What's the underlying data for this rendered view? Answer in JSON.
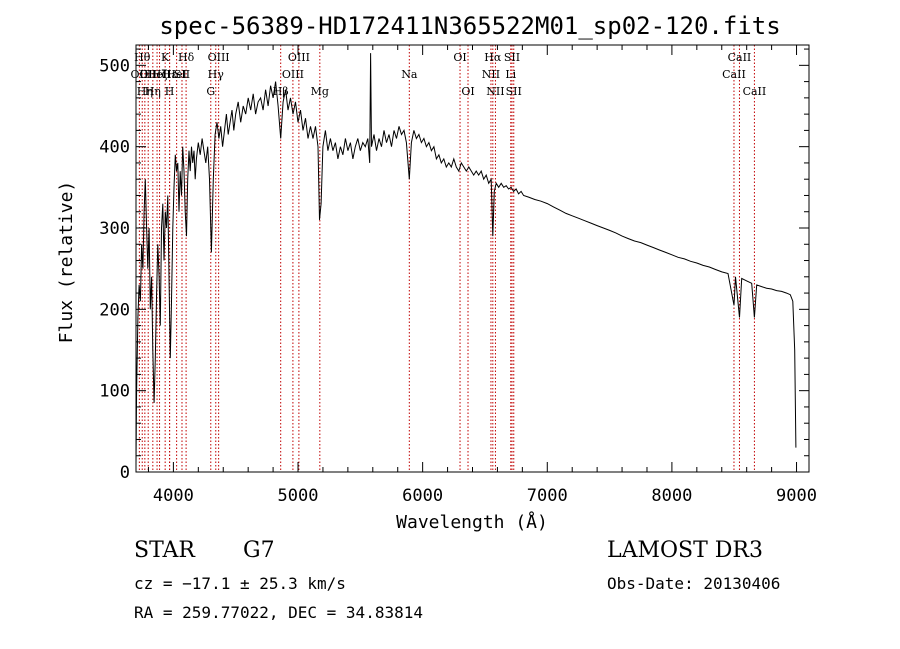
{
  "chart_data": {
    "type": "line",
    "title": "spec-56389-HD172411N365522M01_sp02-120.fits",
    "xlabel": "Wavelength (Å)",
    "ylabel": "Flux (relative)",
    "xlim": [
      3700,
      9100
    ],
    "ylim": [
      0,
      525
    ],
    "xticks": [
      4000,
      5000,
      6000,
      7000,
      8000,
      9000
    ],
    "yticks": [
      0,
      100,
      200,
      300,
      400,
      500
    ],
    "series": [
      {
        "name": "spectrum",
        "points": [
          [
            3700,
            10
          ],
          [
            3705,
            100
          ],
          [
            3715,
            190
          ],
          [
            3725,
            230
          ],
          [
            3735,
            210
          ],
          [
            3745,
            280
          ],
          [
            3755,
            250
          ],
          [
            3765,
            320
          ],
          [
            3775,
            360
          ],
          [
            3785,
            300
          ],
          [
            3795,
            250
          ],
          [
            3805,
            300
          ],
          [
            3815,
            200
          ],
          [
            3825,
            240
          ],
          [
            3835,
            150
          ],
          [
            3845,
            85
          ],
          [
            3855,
            140
          ],
          [
            3865,
            220
          ],
          [
            3875,
            280
          ],
          [
            3885,
            240
          ],
          [
            3895,
            180
          ],
          [
            3905,
            300
          ],
          [
            3915,
            330
          ],
          [
            3925,
            260
          ],
          [
            3935,
            320
          ],
          [
            3945,
            300
          ],
          [
            3955,
            340
          ],
          [
            3965,
            240
          ],
          [
            3975,
            140
          ],
          [
            3985,
            210
          ],
          [
            3995,
            300
          ],
          [
            4005,
            350
          ],
          [
            4015,
            390
          ],
          [
            4025,
            370
          ],
          [
            4035,
            380
          ],
          [
            4045,
            320
          ],
          [
            4055,
            370
          ],
          [
            4065,
            340
          ],
          [
            4075,
            400
          ],
          [
            4085,
            370
          ],
          [
            4095,
            320
          ],
          [
            4105,
            290
          ],
          [
            4115,
            360
          ],
          [
            4125,
            395
          ],
          [
            4135,
            370
          ],
          [
            4145,
            400
          ],
          [
            4155,
            380
          ],
          [
            4165,
            395
          ],
          [
            4175,
            360
          ],
          [
            4185,
            385
          ],
          [
            4200,
            405
          ],
          [
            4215,
            390
          ],
          [
            4230,
            410
          ],
          [
            4245,
            395
          ],
          [
            4260,
            380
          ],
          [
            4275,
            400
          ],
          [
            4290,
            360
          ],
          [
            4305,
            270
          ],
          [
            4320,
            360
          ],
          [
            4335,
            415
          ],
          [
            4350,
            430
          ],
          [
            4365,
            410
          ],
          [
            4380,
            425
          ],
          [
            4395,
            400
          ],
          [
            4410,
            420
          ],
          [
            4425,
            440
          ],
          [
            4440,
            415
          ],
          [
            4455,
            430
          ],
          [
            4470,
            445
          ],
          [
            4485,
            420
          ],
          [
            4500,
            440
          ],
          [
            4520,
            455
          ],
          [
            4540,
            430
          ],
          [
            4560,
            450
          ],
          [
            4580,
            440
          ],
          [
            4600,
            460
          ],
          [
            4620,
            445
          ],
          [
            4640,
            465
          ],
          [
            4660,
            440
          ],
          [
            4680,
            455
          ],
          [
            4700,
            460
          ],
          [
            4720,
            445
          ],
          [
            4740,
            470
          ],
          [
            4760,
            450
          ],
          [
            4780,
            475
          ],
          [
            4800,
            460
          ],
          [
            4820,
            480
          ],
          [
            4840,
            450
          ],
          [
            4861,
            410
          ],
          [
            4880,
            455
          ],
          [
            4900,
            470
          ],
          [
            4920,
            445
          ],
          [
            4940,
            460
          ],
          [
            4960,
            440
          ],
          [
            4980,
            455
          ],
          [
            5000,
            430
          ],
          [
            5020,
            445
          ],
          [
            5040,
            420
          ],
          [
            5060,
            435
          ],
          [
            5080,
            410
          ],
          [
            5100,
            425
          ],
          [
            5120,
            410
          ],
          [
            5140,
            425
          ],
          [
            5160,
            400
          ],
          [
            5172,
            310
          ],
          [
            5185,
            330
          ],
          [
            5200,
            400
          ],
          [
            5220,
            420
          ],
          [
            5240,
            395
          ],
          [
            5260,
            410
          ],
          [
            5280,
            395
          ],
          [
            5300,
            405
          ],
          [
            5320,
            385
          ],
          [
            5340,
            400
          ],
          [
            5360,
            390
          ],
          [
            5380,
            410
          ],
          [
            5400,
            395
          ],
          [
            5420,
            405
          ],
          [
            5440,
            385
          ],
          [
            5460,
            400
          ],
          [
            5480,
            410
          ],
          [
            5500,
            395
          ],
          [
            5520,
            405
          ],
          [
            5540,
            400
          ],
          [
            5560,
            410
          ],
          [
            5575,
            380
          ],
          [
            5582,
            515
          ],
          [
            5590,
            400
          ],
          [
            5610,
            415
          ],
          [
            5630,
            395
          ],
          [
            5650,
            410
          ],
          [
            5670,
            400
          ],
          [
            5690,
            420
          ],
          [
            5710,
            405
          ],
          [
            5730,
            415
          ],
          [
            5750,
            400
          ],
          [
            5770,
            420
          ],
          [
            5790,
            410
          ],
          [
            5810,
            425
          ],
          [
            5830,
            415
          ],
          [
            5850,
            420
          ],
          [
            5870,
            405
          ],
          [
            5893,
            360
          ],
          [
            5910,
            405
          ],
          [
            5930,
            420
          ],
          [
            5950,
            410
          ],
          [
            5970,
            415
          ],
          [
            5990,
            405
          ],
          [
            6010,
            410
          ],
          [
            6030,
            400
          ],
          [
            6050,
            405
          ],
          [
            6070,
            395
          ],
          [
            6090,
            400
          ],
          [
            6110,
            385
          ],
          [
            6130,
            390
          ],
          [
            6150,
            380
          ],
          [
            6170,
            385
          ],
          [
            6190,
            375
          ],
          [
            6210,
            380
          ],
          [
            6230,
            375
          ],
          [
            6250,
            385
          ],
          [
            6270,
            375
          ],
          [
            6290,
            370
          ],
          [
            6310,
            380
          ],
          [
            6330,
            375
          ],
          [
            6350,
            370
          ],
          [
            6370,
            375
          ],
          [
            6390,
            370
          ],
          [
            6410,
            365
          ],
          [
            6430,
            370
          ],
          [
            6450,
            365
          ],
          [
            6470,
            370
          ],
          [
            6490,
            360
          ],
          [
            6510,
            365
          ],
          [
            6530,
            355
          ],
          [
            6550,
            360
          ],
          [
            6563,
            290
          ],
          [
            6575,
            345
          ],
          [
            6590,
            355
          ],
          [
            6610,
            350
          ],
          [
            6630,
            355
          ],
          [
            6650,
            350
          ],
          [
            6670,
            352
          ],
          [
            6690,
            348
          ],
          [
            6710,
            350
          ],
          [
            6730,
            345
          ],
          [
            6750,
            348
          ],
          [
            6770,
            342
          ],
          [
            6790,
            345
          ],
          [
            6810,
            340
          ],
          [
            6850,
            338
          ],
          [
            6900,
            335
          ],
          [
            6950,
            333
          ],
          [
            7000,
            330
          ],
          [
            7050,
            326
          ],
          [
            7100,
            322
          ],
          [
            7150,
            318
          ],
          [
            7200,
            315
          ],
          [
            7250,
            312
          ],
          [
            7300,
            309
          ],
          [
            7350,
            306
          ],
          [
            7400,
            303
          ],
          [
            7450,
            300
          ],
          [
            7500,
            297
          ],
          [
            7550,
            294
          ],
          [
            7600,
            290
          ],
          [
            7650,
            287
          ],
          [
            7700,
            284
          ],
          [
            7750,
            282
          ],
          [
            7800,
            279
          ],
          [
            7850,
            276
          ],
          [
            7900,
            273
          ],
          [
            7950,
            270
          ],
          [
            8000,
            267
          ],
          [
            8050,
            264
          ],
          [
            8100,
            262
          ],
          [
            8150,
            259
          ],
          [
            8200,
            257
          ],
          [
            8250,
            254
          ],
          [
            8300,
            252
          ],
          [
            8350,
            249
          ],
          [
            8400,
            246
          ],
          [
            8450,
            244
          ],
          [
            8498,
            205
          ],
          [
            8510,
            240
          ],
          [
            8542,
            190
          ],
          [
            8560,
            238
          ],
          [
            8600,
            235
          ],
          [
            8640,
            232
          ],
          [
            8662,
            190
          ],
          [
            8680,
            230
          ],
          [
            8720,
            228
          ],
          [
            8760,
            226
          ],
          [
            8800,
            225
          ],
          [
            8840,
            223
          ],
          [
            8880,
            222
          ],
          [
            8920,
            220
          ],
          [
            8950,
            218
          ],
          [
            8970,
            210
          ],
          [
            8985,
            150
          ],
          [
            8995,
            30
          ]
        ]
      }
    ],
    "lines": [
      {
        "w": 3727,
        "l": "OII",
        "r": 1
      },
      {
        "w": 3750,
        "l": "Hθ",
        "r": 0
      },
      {
        "w": 3771,
        "l": "Hη",
        "r": 2
      },
      {
        "w": 3798,
        "l": "OII",
        "r": 1
      },
      {
        "w": 3835,
        "l": "Hη",
        "r": 2
      },
      {
        "w": 3869,
        "l": "HeI",
        "r": 1
      },
      {
        "w": 3889,
        "l": "Hζ",
        "r": 1
      },
      {
        "w": 3934,
        "l": "K",
        "r": 0
      },
      {
        "w": 3969,
        "l": "H",
        "r": 2
      },
      {
        "w": 3970,
        "l": "Hε",
        "r": 1
      },
      {
        "w": 4026,
        "l": "HeI",
        "r": 1
      },
      {
        "w": 4069,
        "l": "SII",
        "r": 1
      },
      {
        "w": 4102,
        "l": "Hδ",
        "r": 0
      },
      {
        "w": 4300,
        "l": "G",
        "r": 2
      },
      {
        "w": 4340,
        "l": "Hγ",
        "r": 1
      },
      {
        "w": 4363,
        "l": "OIII",
        "r": 0
      },
      {
        "w": 4861,
        "l": "Hβ",
        "r": 2
      },
      {
        "w": 4959,
        "l": "OIII",
        "r": 1
      },
      {
        "w": 5007,
        "l": "OIII",
        "r": 0
      },
      {
        "w": 5175,
        "l": "Mg",
        "r": 2
      },
      {
        "w": 5893,
        "l": "Na",
        "r": 1
      },
      {
        "w": 6300,
        "l": "OI",
        "r": 0
      },
      {
        "w": 6364,
        "l": "OI",
        "r": 2
      },
      {
        "w": 6548,
        "l": "NII",
        "r": 1
      },
      {
        "w": 6563,
        "l": "Hα",
        "r": 0
      },
      {
        "w": 6584,
        "l": "NII",
        "r": 2
      },
      {
        "w": 6707,
        "l": "Li",
        "r": 1
      },
      {
        "w": 6717,
        "l": "SII",
        "r": 0
      },
      {
        "w": 6731,
        "l": "SII",
        "r": 2
      },
      {
        "w": 8498,
        "l": "CaII",
        "r": 1
      },
      {
        "w": 8542,
        "l": "CaII",
        "r": 0
      },
      {
        "w": 8662,
        "l": "CaII",
        "r": 2
      }
    ]
  },
  "info": {
    "object_type": "STAR",
    "subclass": "G7",
    "survey": "LAMOST DR3",
    "cz": "cz = −17.1 ± 25.3 km/s",
    "obs_date": "Obs-Date: 20130406",
    "radec": "RA = 259.77022, DEC =  34.83814"
  }
}
